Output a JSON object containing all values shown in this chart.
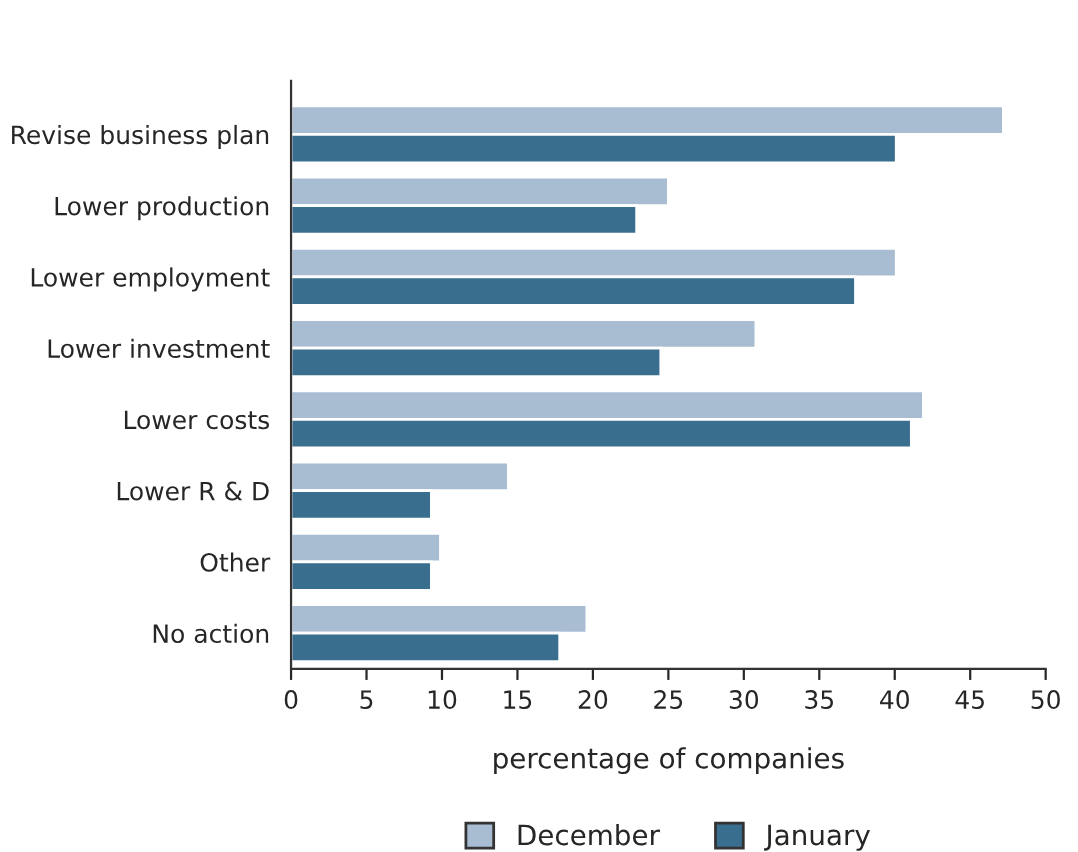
{
  "chart_data": {
    "type": "bar",
    "orientation": "horizontal",
    "xlabel": "percentage of companies",
    "categories": [
      "Revise business plan",
      "Lower production",
      "Lower employment",
      "Lower investment",
      "Lower costs",
      "Lower R & D",
      "Other",
      "No action"
    ],
    "series": [
      {
        "name": "December",
        "color": "#a9bdd2",
        "values": [
          47.2,
          25,
          40.1,
          30.8,
          41.9,
          14.4,
          9.9,
          19.6
        ]
      },
      {
        "name": "January",
        "color": "#3a6e8f",
        "values": [
          40.1,
          22.9,
          37.4,
          24.5,
          41.1,
          9.3,
          9.3,
          17.8
        ]
      }
    ],
    "xlim": [
      0,
      50
    ],
    "xticks": [
      0,
      5,
      10,
      15,
      20,
      25,
      30,
      35,
      40,
      45,
      50
    ],
    "grid": false,
    "legend": "bottom"
  }
}
